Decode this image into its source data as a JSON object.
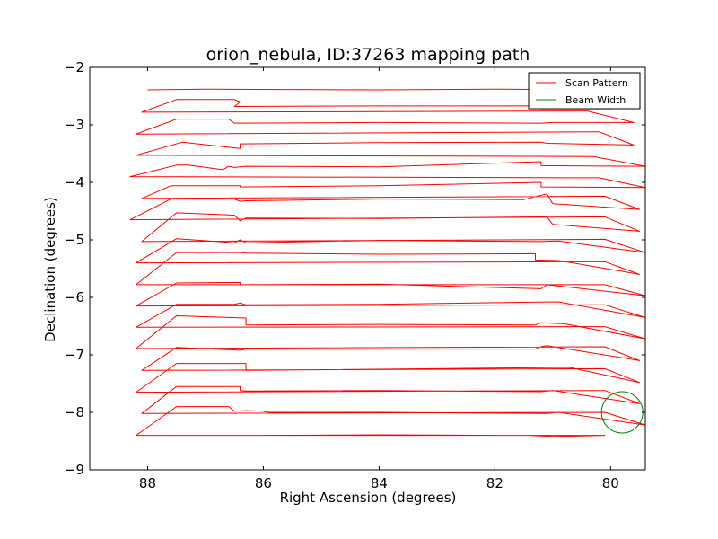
{
  "chart_data": {
    "type": "line",
    "title": "orion_nebula, ID:37263 mapping path",
    "xlabel": "Right Ascension (degrees)",
    "ylabel": "Declination (degrees)",
    "xlim": [
      89,
      79.4
    ],
    "ylim": [
      -9,
      -2
    ],
    "x_inverted": true,
    "xticks": [
      88,
      86,
      84,
      82,
      80
    ],
    "yticks": [
      -2,
      -3,
      -4,
      -5,
      -6,
      -7,
      -8,
      -9
    ],
    "xtick_labels": [
      "88",
      "86",
      "84",
      "82",
      "80"
    ],
    "ytick_labels": [
      "−2",
      "−3",
      "−4",
      "−5",
      "−6",
      "−7",
      "−8",
      "−9"
    ],
    "grid": false,
    "legend": {
      "position": "top-right",
      "entries": [
        {
          "label": "Scan Pattern",
          "color": "#ff0000",
          "kind": "line"
        },
        {
          "label": "Beam Width",
          "color": "#008000",
          "kind": "line"
        }
      ]
    },
    "series": [
      {
        "name": "Scan Pattern",
        "color": "#ff0000",
        "points": [
          [
            88.0,
            -2.39
          ],
          [
            87.0,
            -2.38
          ],
          [
            84.0,
            -2.39
          ],
          [
            82.0,
            -2.38
          ],
          [
            80.0,
            -2.39
          ],
          [
            79.7,
            -2.55
          ],
          [
            80.0,
            -2.72
          ],
          [
            81.2,
            -2.72
          ],
          [
            81.2,
            -2.67
          ],
          [
            84.0,
            -2.67
          ],
          [
            86.5,
            -2.68
          ],
          [
            86.4,
            -2.6
          ],
          [
            86.5,
            -2.56
          ],
          [
            87.5,
            -2.56
          ],
          [
            88.1,
            -2.78
          ],
          [
            80.4,
            -2.76
          ],
          [
            79.6,
            -2.96
          ],
          [
            81.0,
            -2.96
          ],
          [
            81.2,
            -2.97
          ],
          [
            84.0,
            -2.96
          ],
          [
            86.5,
            -2.97
          ],
          [
            86.6,
            -2.9
          ],
          [
            87.5,
            -2.9
          ],
          [
            88.2,
            -3.16
          ],
          [
            80.2,
            -3.12
          ],
          [
            79.6,
            -3.35
          ],
          [
            81.1,
            -3.32
          ],
          [
            81.2,
            -3.3
          ],
          [
            84.0,
            -3.31
          ],
          [
            86.4,
            -3.33
          ],
          [
            86.4,
            -3.41
          ],
          [
            87.4,
            -3.3
          ],
          [
            88.2,
            -3.53
          ],
          [
            80.3,
            -3.55
          ],
          [
            79.4,
            -3.72
          ],
          [
            81.2,
            -3.71
          ],
          [
            81.2,
            -3.64
          ],
          [
            84.0,
            -3.73
          ],
          [
            86.3,
            -3.72
          ],
          [
            86.5,
            -3.74
          ],
          [
            86.6,
            -3.72
          ],
          [
            86.7,
            -3.78
          ],
          [
            87.3,
            -3.7
          ],
          [
            87.5,
            -3.7
          ],
          [
            88.3,
            -3.9
          ],
          [
            80.2,
            -3.92
          ],
          [
            79.4,
            -4.09
          ],
          [
            81.2,
            -4.08
          ],
          [
            81.2,
            -4.0
          ],
          [
            84.0,
            -4.06
          ],
          [
            86.4,
            -4.08
          ],
          [
            86.4,
            -4.06
          ],
          [
            87.6,
            -4.06
          ],
          [
            88.1,
            -4.28
          ],
          [
            80.1,
            -4.24
          ],
          [
            79.5,
            -4.47
          ],
          [
            81.0,
            -4.37
          ],
          [
            81.1,
            -4.2
          ],
          [
            81.5,
            -4.3
          ],
          [
            84.0,
            -4.29
          ],
          [
            86.3,
            -4.32
          ],
          [
            86.4,
            -4.33
          ],
          [
            86.5,
            -4.29
          ],
          [
            87.6,
            -4.29
          ],
          [
            88.3,
            -4.65
          ],
          [
            80.1,
            -4.6
          ],
          [
            79.5,
            -4.85
          ],
          [
            81.0,
            -4.73
          ],
          [
            81.1,
            -4.6
          ],
          [
            84.0,
            -4.63
          ],
          [
            86.3,
            -4.62
          ],
          [
            86.4,
            -4.67
          ],
          [
            86.5,
            -4.57
          ],
          [
            87.5,
            -4.53
          ],
          [
            88.1,
            -5.03
          ],
          [
            80.1,
            -4.99
          ],
          [
            79.4,
            -5.22
          ],
          [
            80.9,
            -5.02
          ],
          [
            81.2,
            -5.03
          ],
          [
            84.0,
            -5.01
          ],
          [
            86.3,
            -5.05
          ],
          [
            86.4,
            -5.0
          ],
          [
            86.5,
            -5.05
          ],
          [
            87.5,
            -4.98
          ],
          [
            88.2,
            -5.4
          ],
          [
            80.1,
            -5.38
          ],
          [
            79.5,
            -5.6
          ],
          [
            80.9,
            -5.36
          ],
          [
            81.3,
            -5.35
          ],
          [
            81.3,
            -5.24
          ],
          [
            84.0,
            -5.25
          ],
          [
            86.3,
            -5.23
          ],
          [
            86.4,
            -5.22
          ],
          [
            87.5,
            -5.22
          ],
          [
            88.2,
            -5.78
          ],
          [
            80.1,
            -5.78
          ],
          [
            79.4,
            -5.97
          ],
          [
            81.1,
            -5.78
          ],
          [
            81.2,
            -5.85
          ],
          [
            84.0,
            -5.77
          ],
          [
            86.4,
            -5.78
          ],
          [
            86.4,
            -5.74
          ],
          [
            87.5,
            -5.75
          ],
          [
            88.2,
            -6.15
          ],
          [
            80.1,
            -6.13
          ],
          [
            79.4,
            -6.35
          ],
          [
            80.9,
            -6.08
          ],
          [
            81.1,
            -6.08
          ],
          [
            84.0,
            -6.12
          ],
          [
            86.3,
            -6.13
          ],
          [
            86.4,
            -6.1
          ],
          [
            86.5,
            -6.12
          ],
          [
            87.5,
            -6.12
          ],
          [
            88.2,
            -6.52
          ],
          [
            80.1,
            -6.51
          ],
          [
            79.4,
            -6.72
          ],
          [
            80.8,
            -6.46
          ],
          [
            81.2,
            -6.44
          ],
          [
            81.3,
            -6.48
          ],
          [
            84.0,
            -6.47
          ],
          [
            86.3,
            -6.48
          ],
          [
            86.3,
            -6.36
          ],
          [
            87.5,
            -6.32
          ],
          [
            88.2,
            -6.89
          ],
          [
            80.1,
            -6.86
          ],
          [
            79.5,
            -7.1
          ],
          [
            81.1,
            -6.84
          ],
          [
            81.2,
            -6.86
          ],
          [
            81.3,
            -6.9
          ],
          [
            84.0,
            -6.9
          ],
          [
            86.3,
            -6.9
          ],
          [
            86.4,
            -6.92
          ],
          [
            87.5,
            -6.87
          ],
          [
            88.1,
            -7.27
          ],
          [
            80.1,
            -7.24
          ],
          [
            79.5,
            -7.48
          ],
          [
            80.7,
            -7.22
          ],
          [
            81.0,
            -7.22
          ],
          [
            84.0,
            -7.25
          ],
          [
            86.3,
            -7.27
          ],
          [
            86.3,
            -7.15
          ],
          [
            87.5,
            -7.15
          ],
          [
            88.2,
            -7.65
          ],
          [
            80.1,
            -7.62
          ],
          [
            79.5,
            -7.85
          ],
          [
            81.0,
            -7.62
          ],
          [
            81.2,
            -7.64
          ],
          [
            84.0,
            -7.62
          ],
          [
            86.3,
            -7.63
          ],
          [
            86.4,
            -7.62
          ],
          [
            86.4,
            -7.55
          ],
          [
            87.5,
            -7.55
          ],
          [
            88.1,
            -8.02
          ],
          [
            80.1,
            -8.0
          ],
          [
            79.4,
            -8.22
          ],
          [
            80.9,
            -8.0
          ],
          [
            81.1,
            -8.02
          ],
          [
            84.0,
            -8.0
          ],
          [
            85.9,
            -8.0
          ],
          [
            86.0,
            -7.98
          ],
          [
            86.3,
            -7.97
          ],
          [
            86.5,
            -7.98
          ],
          [
            86.6,
            -7.9
          ],
          [
            87.5,
            -7.9
          ],
          [
            88.2,
            -8.4
          ],
          [
            80.1,
            -8.4
          ],
          [
            81.0,
            -8.42
          ],
          [
            81.4,
            -8.4
          ],
          [
            82.0,
            -8.4
          ],
          [
            84.0,
            -8.39
          ],
          [
            86.0,
            -8.4
          ],
          [
            88.2,
            -8.4
          ]
        ]
      },
      {
        "name": "Beam Width",
        "color": "#008000",
        "shape": "circle",
        "center": [
          79.8,
          -8.0
        ],
        "radius_deg": 0.36
      }
    ]
  }
}
